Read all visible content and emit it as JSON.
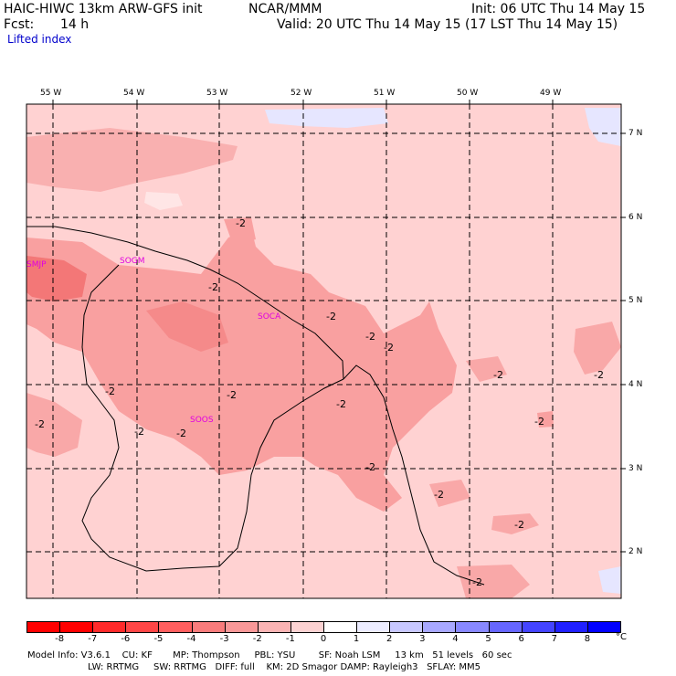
{
  "header": {
    "model_line": "HAIC-HIWC 13km ARW-GFS init",
    "org": "NCAR/MMM",
    "init": "Init: 06 UTC Thu 14 May 15",
    "fcst_label": "Fcst:",
    "fcst_value": "14 h",
    "valid": "Valid: 20 UTC Thu 14 May 15 (17 LST Thu 14 May 15)",
    "product": "Lifted index"
  },
  "map": {
    "lon_labels": [
      "55 W",
      "54 W",
      "53 W",
      "52 W",
      "51 W",
      "50 W",
      "49 W"
    ],
    "lat_labels": [
      "7 N",
      "6 N",
      "5 N",
      "4 N",
      "3 N",
      "2 N"
    ],
    "stations": [
      "SMJP",
      "SOGM",
      "SOCA",
      "SOOS"
    ],
    "contour_labels": [
      "-2",
      "-2",
      "-2",
      "-2",
      "-2",
      "-2",
      "-2",
      "-2",
      "-2",
      "-2",
      "-2",
      "-2",
      "-2",
      "-2",
      "-2",
      "-2",
      "-2",
      "-2"
    ],
    "colors": {
      "light_pink": "#ffd2d2",
      "mid_pink": "#f9a0a0",
      "dark_pink": "#f37777",
      "pale_blue": "#ddddff"
    }
  },
  "colorbar": {
    "ticks": [
      "-8",
      "-7",
      "-6",
      "-5",
      "-4",
      "-3",
      "-2",
      "-1",
      "0",
      "1",
      "2",
      "3",
      "4",
      "5",
      "6",
      "7",
      "8"
    ],
    "unit": "°C",
    "colors": [
      "#ff0000",
      "#ff2a2a",
      "#ff4646",
      "#ff5f5f",
      "#f97c7c",
      "#f99898",
      "#fbb4b4",
      "#fcd2d2",
      "#ffffff",
      "#ececff",
      "#c8c8ff",
      "#a8a8ff",
      "#8888ff",
      "#6666ff",
      "#4444ff",
      "#2020ff",
      "#0000ff"
    ]
  },
  "footer": {
    "line1": "Model Info: V3.6.1    CU: KF       MP: Thompson     PBL: YSU        SF: Noah LSM     13 km   51 levels   60 sec",
    "line2": "LW: RRTMG     SW: RRTMG   DIFF: full    KM: 2D Smagor DAMP: Rayleigh3   SFLAY: MM5"
  }
}
